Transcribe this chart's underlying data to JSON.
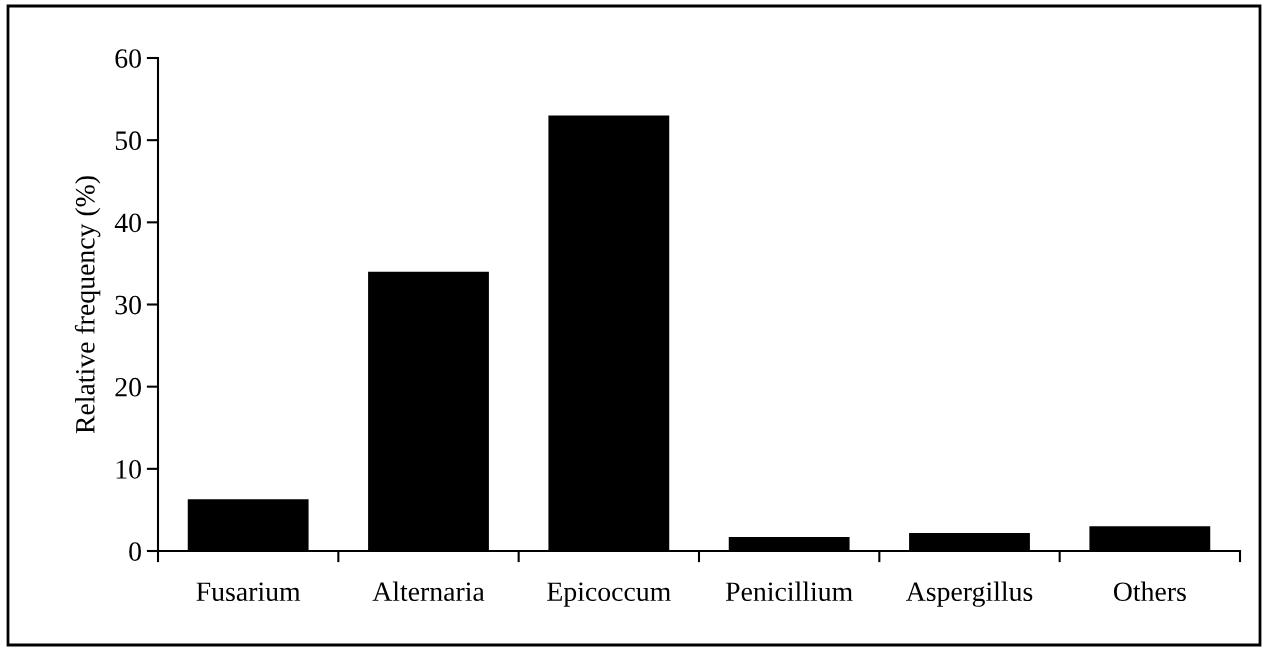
{
  "chart_data": {
    "type": "bar",
    "ylabel": "Relative frequency (%)",
    "categories": [
      "Fusarium",
      "Alternaria",
      "Epicoccum",
      "Penicillium",
      "Aspergillus",
      "Others"
    ],
    "values": [
      6.3,
      34,
      53,
      1.7,
      2.2,
      3.0
    ],
    "color": "#000000",
    "ylim": [
      0,
      60
    ],
    "yticks": [
      0,
      10,
      20,
      30,
      40,
      50,
      60
    ],
    "grid": false,
    "legend": false
  }
}
